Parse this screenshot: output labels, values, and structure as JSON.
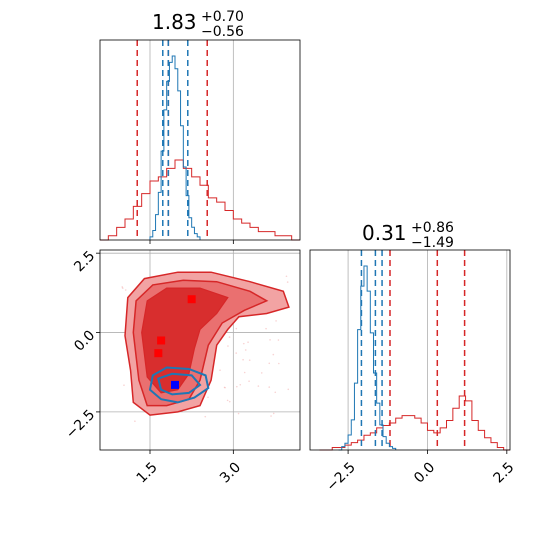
{
  "chart_data": [
    {
      "panel": "top-left",
      "type": "histogram",
      "title": {
        "value": "1.83",
        "upper": "+0.70",
        "lower": "−0.56"
      },
      "x_range": [
        0.6,
        4.2
      ],
      "x_ticks": [
        1.5,
        3.0
      ],
      "show_tick_labels": false,
      "grid": true,
      "series": [
        {
          "color": "#d62728",
          "bins": [
            0.6,
            0.75,
            0.9,
            1.05,
            1.2,
            1.35,
            1.5,
            1.65,
            1.8,
            1.95,
            2.1,
            2.25,
            2.4,
            2.55,
            2.7,
            2.85,
            3.0,
            3.15,
            3.3,
            3.45,
            3.6,
            3.75,
            3.9,
            4.05,
            4.2
          ],
          "counts": [
            0,
            1,
            3,
            5,
            8,
            11,
            14,
            15,
            17,
            19,
            17,
            15,
            13,
            10,
            9,
            7,
            5,
            4,
            3,
            2,
            2,
            1,
            1,
            0
          ],
          "quantiles": [
            1.27,
            1.83,
            2.53
          ]
        },
        {
          "color": "#1f77b4",
          "bins": [
            1.5,
            1.55,
            1.6,
            1.65,
            1.7,
            1.75,
            1.8,
            1.85,
            1.9,
            1.95,
            2.0,
            2.05,
            2.1,
            2.15,
            2.2,
            2.25,
            2.3,
            2.35,
            2.4
          ],
          "counts": [
            1,
            3,
            8,
            15,
            28,
            41,
            50,
            56,
            58,
            54,
            47,
            36,
            23,
            14,
            7,
            4,
            2,
            1
          ],
          "quantiles": [
            1.73,
            1.83,
            2.18
          ]
        }
      ]
    },
    {
      "panel": "bottom-left",
      "type": "contour",
      "x_range": [
        0.6,
        4.2
      ],
      "y_range": [
        -3.7,
        2.6
      ],
      "x_ticks": [
        1.5,
        3.0
      ],
      "x_tick_labels": [
        "1.5",
        "3.0"
      ],
      "y_ticks": [
        2.5,
        0.0,
        -2.5
      ],
      "y_tick_labels": [
        "2.5",
        "0.0",
        "−2.5"
      ],
      "grid": true,
      "series": [
        {
          "color": "#d62728",
          "levels": 3
        },
        {
          "color": "#1f77b4",
          "levels": 2
        }
      ],
      "markers": [
        {
          "x": 2.25,
          "y": 1.05,
          "color": "#ff0000"
        },
        {
          "x": 1.7,
          "y": -0.25,
          "color": "#ff0000"
        },
        {
          "x": 1.65,
          "y": -0.65,
          "color": "#ff0000"
        },
        {
          "x": 1.95,
          "y": -1.65,
          "color": "#0000ff"
        }
      ]
    },
    {
      "panel": "bottom-right",
      "type": "histogram",
      "title": {
        "value": "0.31",
        "upper": "+0.86",
        "lower": "−1.49"
      },
      "x_range": [
        -3.7,
        2.6
      ],
      "x_ticks": [
        -2.5,
        0.0,
        2.5
      ],
      "x_tick_labels": [
        "−2.5",
        "0.0",
        "2.5"
      ],
      "grid": true,
      "series": [
        {
          "color": "#d62728",
          "bins": [
            -3.4,
            -3.2,
            -3.0,
            -2.8,
            -2.6,
            -2.4,
            -2.2,
            -2.0,
            -1.8,
            -1.6,
            -1.4,
            -1.2,
            -1.0,
            -0.8,
            -0.6,
            -0.4,
            -0.2,
            0.0,
            0.2,
            0.4,
            0.6,
            0.8,
            1.0,
            1.2,
            1.4,
            1.6,
            1.8,
            2.0,
            2.2,
            2.4,
            2.6
          ],
          "counts": [
            0,
            0,
            1,
            1,
            2,
            3,
            4,
            6,
            7,
            9,
            10,
            11,
            13,
            14,
            14,
            13,
            11,
            8,
            7,
            9,
            12,
            17,
            22,
            20,
            12,
            8,
            5,
            3,
            1,
            0
          ],
          "quantiles": [
            -1.18,
            0.31,
            1.17
          ]
        },
        {
          "color": "#1f77b4",
          "bins": [
            -2.8,
            -2.7,
            -2.6,
            -2.5,
            -2.4,
            -2.3,
            -2.2,
            -2.1,
            -2.0,
            -1.9,
            -1.8,
            -1.7,
            -1.6,
            -1.5,
            -1.4,
            -1.3,
            -1.2,
            -1.1,
            -1.0
          ],
          "counts": [
            0,
            2,
            4,
            9,
            18,
            40,
            72,
            98,
            110,
            95,
            70,
            46,
            28,
            15,
            8,
            4,
            2,
            1
          ],
          "quantiles": [
            -2.08,
            -1.64,
            -1.43
          ]
        }
      ]
    }
  ]
}
